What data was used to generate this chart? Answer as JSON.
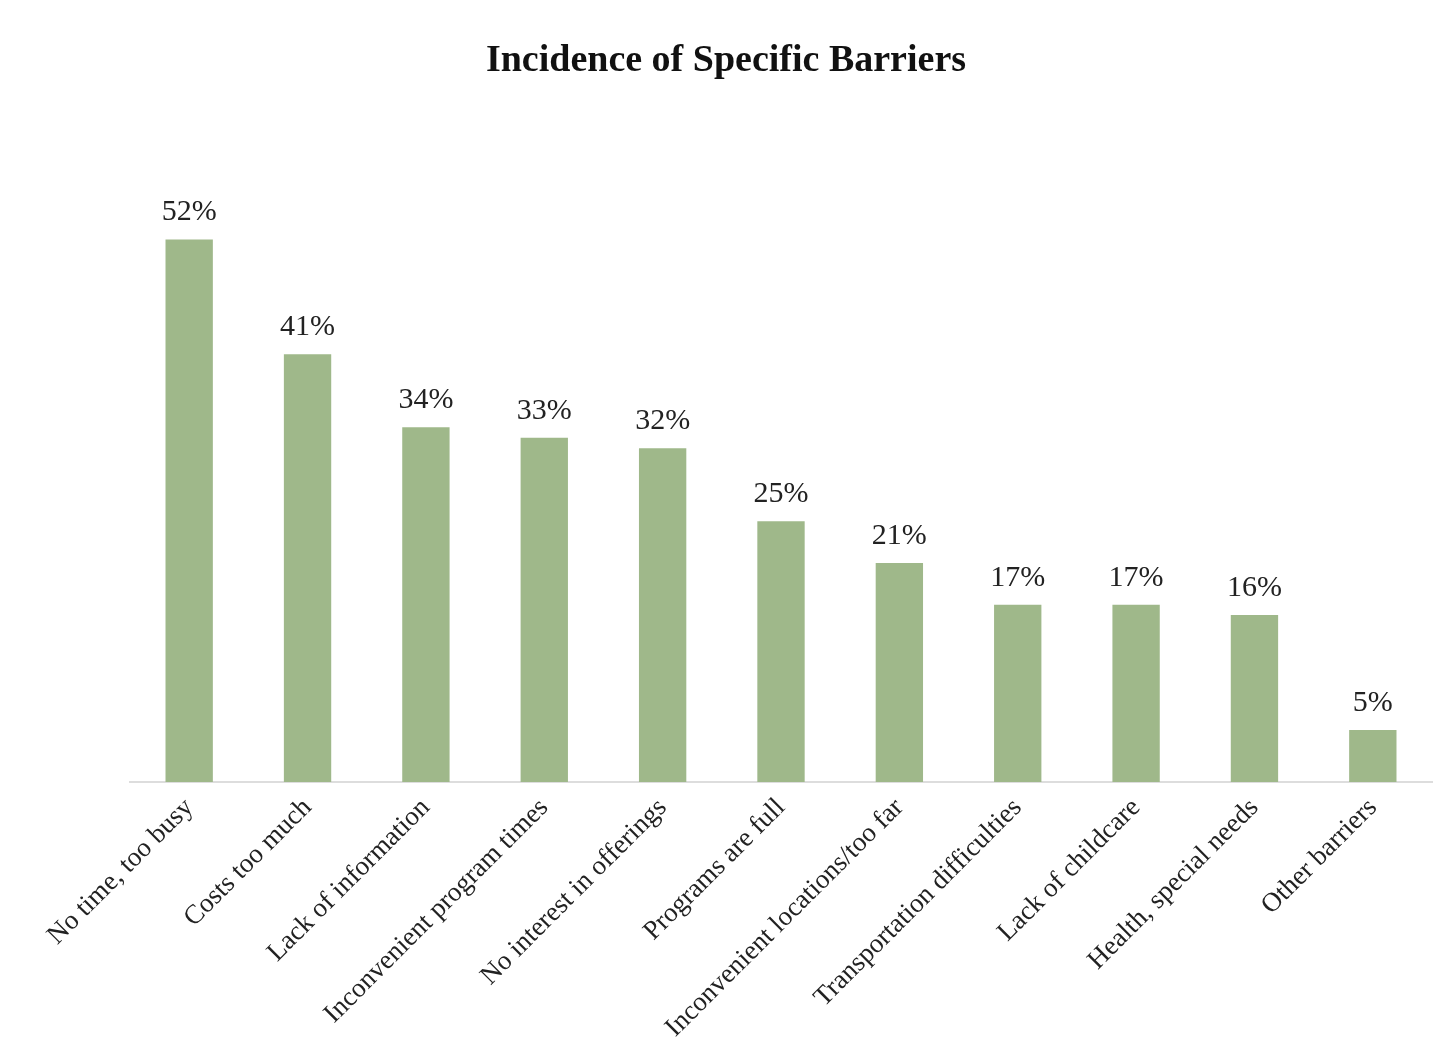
{
  "chart_data": {
    "type": "bar",
    "title": "Incidence of Specific Barriers",
    "categories": [
      "No time, too busy",
      "Costs too much",
      "Lack of information",
      "Inconvenient program times",
      "No interest in offerings",
      "Programs are full",
      "Inconvenient locations/too far",
      "Transportation difficulties",
      "Lack of childcare",
      "Health, special needs",
      "Other barriers"
    ],
    "values": [
      52,
      41,
      34,
      33,
      32,
      25,
      21,
      17,
      17,
      16,
      5
    ],
    "value_labels": [
      "52%",
      "41%",
      "34%",
      "33%",
      "32%",
      "25%",
      "21%",
      "17%",
      "17%",
      "16%",
      "5%"
    ],
    "color": "#9fb88a",
    "grid": false,
    "legend": false,
    "tick_labels": "x"
  }
}
